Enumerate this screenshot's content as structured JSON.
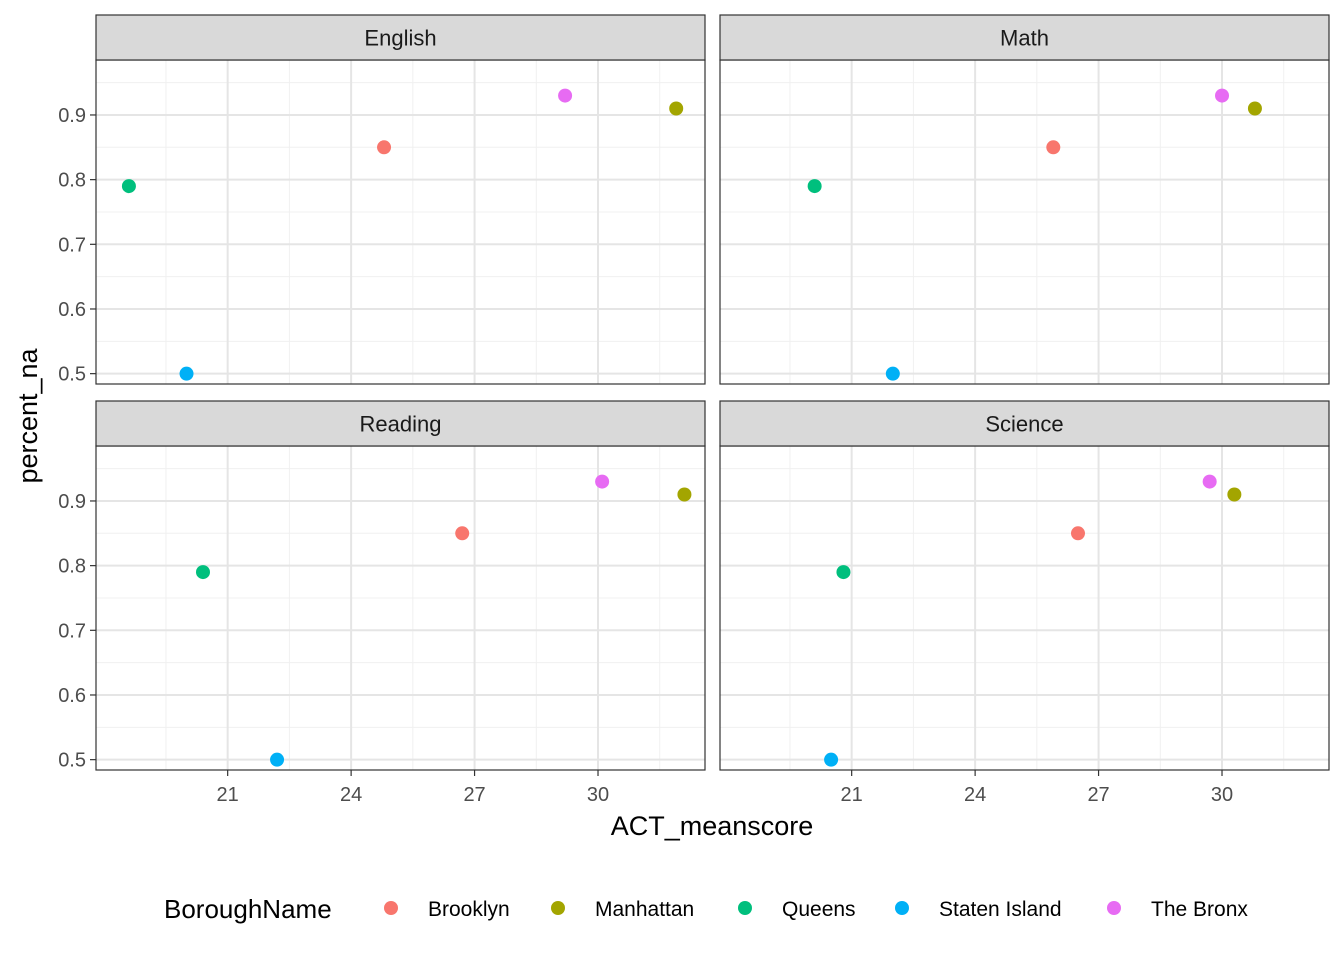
{
  "chart_data": {
    "type": "scatter",
    "facet_layout": "2x2",
    "shared_axes": true,
    "xlabel": "ACT_meanscore",
    "ylabel": "percent_na",
    "xlim": [
      17.8,
      32.6
    ],
    "ylim": [
      0.484,
      0.985
    ],
    "x_ticks": [
      21,
      24,
      27,
      30
    ],
    "x_tick_labels": [
      "21",
      "24",
      "27",
      "30"
    ],
    "y_ticks": [
      0.5,
      0.6,
      0.7,
      0.8,
      0.9
    ],
    "y_tick_labels": [
      "0.5",
      "0.6",
      "0.7",
      "0.8",
      "0.9"
    ],
    "grid": true,
    "legend": {
      "title": "BoroughName",
      "placement": "bottom",
      "entries": [
        "Brooklyn",
        "Manhattan",
        "Queens",
        "Staten Island",
        "The Bronx"
      ]
    },
    "colors": {
      "Brooklyn": "#F8766D",
      "Manhattan": "#A3A500",
      "Queens": "#00BF7D",
      "Staten Island": "#00B0F6",
      "The Bronx": "#E76BF3"
    },
    "panels": [
      {
        "title": "English",
        "points": [
          {
            "name": "Brooklyn",
            "x": 24.8,
            "y": 0.85
          },
          {
            "name": "Manhattan",
            "x": 31.9,
            "y": 0.91
          },
          {
            "name": "Queens",
            "x": 18.6,
            "y": 0.79
          },
          {
            "name": "Staten Island",
            "x": 20.0,
            "y": 0.5
          },
          {
            "name": "The Bronx",
            "x": 29.2,
            "y": 0.93
          }
        ]
      },
      {
        "title": "Math",
        "points": [
          {
            "name": "Brooklyn",
            "x": 25.9,
            "y": 0.85
          },
          {
            "name": "Manhattan",
            "x": 30.8,
            "y": 0.91
          },
          {
            "name": "Queens",
            "x": 20.1,
            "y": 0.79
          },
          {
            "name": "Staten Island",
            "x": 22.0,
            "y": 0.5
          },
          {
            "name": "The Bronx",
            "x": 30.0,
            "y": 0.93
          }
        ]
      },
      {
        "title": "Reading",
        "points": [
          {
            "name": "Brooklyn",
            "x": 26.7,
            "y": 0.85
          },
          {
            "name": "Manhattan",
            "x": 32.1,
            "y": 0.91
          },
          {
            "name": "Queens",
            "x": 20.4,
            "y": 0.79
          },
          {
            "name": "Staten Island",
            "x": 22.2,
            "y": 0.5
          },
          {
            "name": "The Bronx",
            "x": 30.1,
            "y": 0.93
          }
        ]
      },
      {
        "title": "Science",
        "points": [
          {
            "name": "Brooklyn",
            "x": 26.5,
            "y": 0.85
          },
          {
            "name": "Manhattan",
            "x": 30.3,
            "y": 0.91
          },
          {
            "name": "Queens",
            "x": 20.8,
            "y": 0.79
          },
          {
            "name": "Staten Island",
            "x": 20.5,
            "y": 0.5
          },
          {
            "name": "The Bronx",
            "x": 29.7,
            "y": 0.93
          }
        ]
      }
    ]
  }
}
